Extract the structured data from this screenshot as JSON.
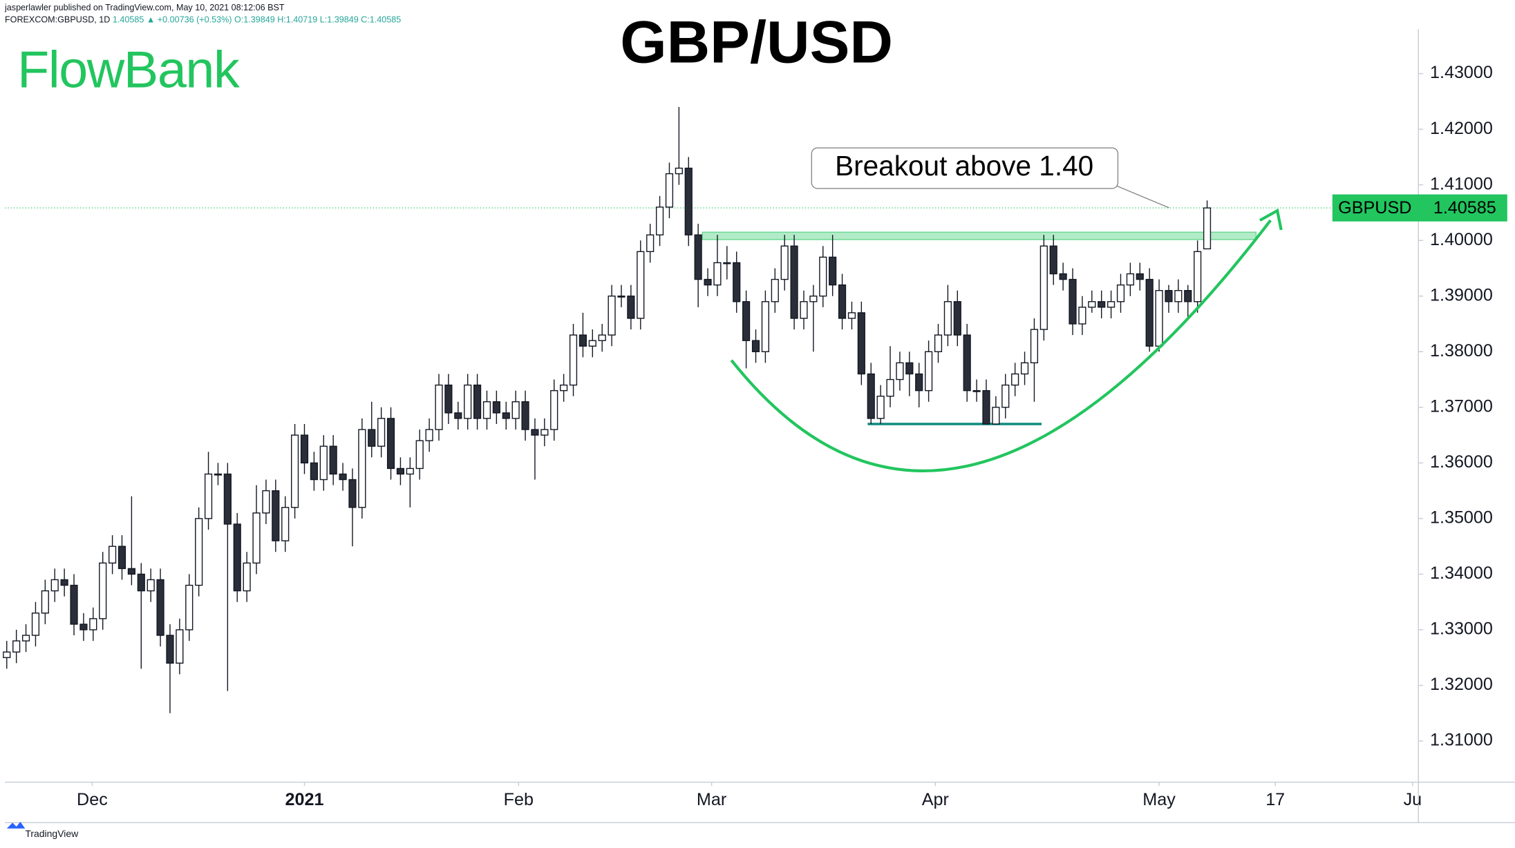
{
  "header": {
    "line1": "jasperlawler published on TradingView.com, May 10, 2021 08:12:06 BST",
    "symbol": "FOREXCOM:GBPUSD, 1D",
    "last": "1.40585",
    "change": "▲ +0.00736 (+0.53%)",
    "ohlc": "O:1.39849 H:1.40719 L:1.39849 C:1.40585"
  },
  "logo": "FlowBank",
  "footer": "TradingView",
  "chart_data": {
    "type": "candlestick",
    "title": "GBP/USD",
    "series": [
      {
        "name": "GBPUSD",
        "up_color": "#ffffff",
        "down_color": "#2a2e39",
        "edge_color": "#131722",
        "ohlc": [
          [
            1.325,
            1.328,
            1.323,
            1.326
          ],
          [
            1.326,
            1.33,
            1.324,
            1.328
          ],
          [
            1.328,
            1.331,
            1.326,
            1.329
          ],
          [
            1.329,
            1.335,
            1.327,
            1.333
          ],
          [
            1.333,
            1.339,
            1.331,
            1.337
          ],
          [
            1.337,
            1.341,
            1.335,
            1.339
          ],
          [
            1.339,
            1.341,
            1.336,
            1.338
          ],
          [
            1.338,
            1.34,
            1.329,
            1.331
          ],
          [
            1.331,
            1.333,
            1.328,
            1.33
          ],
          [
            1.33,
            1.334,
            1.328,
            1.332
          ],
          [
            1.332,
            1.344,
            1.33,
            1.342
          ],
          [
            1.342,
            1.347,
            1.34,
            1.345
          ],
          [
            1.345,
            1.347,
            1.339,
            1.341
          ],
          [
            1.341,
            1.354,
            1.338,
            1.34
          ],
          [
            1.34,
            1.342,
            1.323,
            1.337
          ],
          [
            1.337,
            1.341,
            1.335,
            1.339
          ],
          [
            1.339,
            1.341,
            1.327,
            1.329
          ],
          [
            1.329,
            1.331,
            1.315,
            1.324
          ],
          [
            1.324,
            1.332,
            1.322,
            1.33
          ],
          [
            1.33,
            1.34,
            1.328,
            1.338
          ],
          [
            1.338,
            1.352,
            1.336,
            1.35
          ],
          [
            1.35,
            1.362,
            1.348,
            1.358
          ],
          [
            1.358,
            1.36,
            1.356,
            1.358
          ],
          [
            1.358,
            1.36,
            1.319,
            1.349
          ],
          [
            1.349,
            1.351,
            1.335,
            1.337
          ],
          [
            1.337,
            1.344,
            1.335,
            1.342
          ],
          [
            1.342,
            1.356,
            1.34,
            1.351
          ],
          [
            1.351,
            1.357,
            1.349,
            1.355
          ],
          [
            1.355,
            1.357,
            1.344,
            1.346
          ],
          [
            1.346,
            1.354,
            1.344,
            1.352
          ],
          [
            1.352,
            1.367,
            1.35,
            1.365
          ],
          [
            1.365,
            1.367,
            1.358,
            1.36
          ],
          [
            1.36,
            1.362,
            1.355,
            1.357
          ],
          [
            1.357,
            1.365,
            1.355,
            1.363
          ],
          [
            1.363,
            1.365,
            1.356,
            1.358
          ],
          [
            1.358,
            1.36,
            1.355,
            1.357
          ],
          [
            1.357,
            1.359,
            1.345,
            1.352
          ],
          [
            1.352,
            1.368,
            1.35,
            1.366
          ],
          [
            1.366,
            1.371,
            1.361,
            1.363
          ],
          [
            1.363,
            1.37,
            1.361,
            1.368
          ],
          [
            1.368,
            1.37,
            1.357,
            1.359
          ],
          [
            1.359,
            1.361,
            1.356,
            1.358
          ],
          [
            1.358,
            1.361,
            1.352,
            1.359
          ],
          [
            1.359,
            1.366,
            1.357,
            1.364
          ],
          [
            1.364,
            1.368,
            1.362,
            1.366
          ],
          [
            1.366,
            1.376,
            1.364,
            1.374
          ],
          [
            1.374,
            1.376,
            1.367,
            1.369
          ],
          [
            1.369,
            1.371,
            1.366,
            1.368
          ],
          [
            1.368,
            1.376,
            1.366,
            1.374
          ],
          [
            1.374,
            1.376,
            1.366,
            1.368
          ],
          [
            1.368,
            1.373,
            1.366,
            1.371
          ],
          [
            1.371,
            1.373,
            1.367,
            1.369
          ],
          [
            1.369,
            1.371,
            1.366,
            1.368
          ],
          [
            1.368,
            1.373,
            1.366,
            1.371
          ],
          [
            1.371,
            1.373,
            1.364,
            1.366
          ],
          [
            1.366,
            1.368,
            1.357,
            1.365
          ],
          [
            1.365,
            1.368,
            1.363,
            1.366
          ],
          [
            1.366,
            1.375,
            1.364,
            1.373
          ],
          [
            1.373,
            1.376,
            1.371,
            1.374
          ],
          [
            1.374,
            1.385,
            1.372,
            1.383
          ],
          [
            1.383,
            1.387,
            1.379,
            1.381
          ],
          [
            1.381,
            1.384,
            1.379,
            1.382
          ],
          [
            1.382,
            1.385,
            1.38,
            1.383
          ],
          [
            1.383,
            1.392,
            1.381,
            1.39
          ],
          [
            1.39,
            1.392,
            1.388,
            1.39
          ],
          [
            1.39,
            1.392,
            1.384,
            1.386
          ],
          [
            1.386,
            1.4,
            1.384,
            1.398
          ],
          [
            1.398,
            1.403,
            1.396,
            1.401
          ],
          [
            1.401,
            1.408,
            1.399,
            1.406
          ],
          [
            1.406,
            1.414,
            1.404,
            1.412
          ],
          [
            1.412,
            1.424,
            1.41,
            1.413
          ],
          [
            1.413,
            1.415,
            1.399,
            1.401
          ],
          [
            1.401,
            1.403,
            1.388,
            1.393
          ],
          [
            1.393,
            1.395,
            1.39,
            1.392
          ],
          [
            1.392,
            1.401,
            1.39,
            1.396
          ],
          [
            1.396,
            1.399,
            1.393,
            1.396
          ],
          [
            1.396,
            1.398,
            1.387,
            1.389
          ],
          [
            1.389,
            1.391,
            1.377,
            1.382
          ],
          [
            1.382,
            1.384,
            1.378,
            1.38
          ],
          [
            1.38,
            1.391,
            1.378,
            1.389
          ],
          [
            1.389,
            1.395,
            1.387,
            1.393
          ],
          [
            1.393,
            1.401,
            1.391,
            1.399
          ],
          [
            1.399,
            1.401,
            1.384,
            1.386
          ],
          [
            1.386,
            1.391,
            1.384,
            1.389
          ],
          [
            1.389,
            1.392,
            1.38,
            1.39
          ],
          [
            1.39,
            1.399,
            1.388,
            1.397
          ],
          [
            1.397,
            1.401,
            1.39,
            1.392
          ],
          [
            1.392,
            1.394,
            1.384,
            1.386
          ],
          [
            1.386,
            1.389,
            1.384,
            1.387
          ],
          [
            1.387,
            1.389,
            1.374,
            1.376
          ],
          [
            1.376,
            1.378,
            1.367,
            1.368
          ],
          [
            1.368,
            1.374,
            1.367,
            1.372
          ],
          [
            1.372,
            1.381,
            1.37,
            1.375
          ],
          [
            1.375,
            1.38,
            1.373,
            1.378
          ],
          [
            1.378,
            1.38,
            1.372,
            1.376
          ],
          [
            1.376,
            1.378,
            1.37,
            1.373
          ],
          [
            1.373,
            1.382,
            1.371,
            1.38
          ],
          [
            1.38,
            1.385,
            1.378,
            1.383
          ],
          [
            1.383,
            1.392,
            1.381,
            1.389
          ],
          [
            1.389,
            1.391,
            1.381,
            1.383
          ],
          [
            1.383,
            1.385,
            1.371,
            1.373
          ],
          [
            1.373,
            1.375,
            1.371,
            1.373
          ],
          [
            1.373,
            1.375,
            1.367,
            1.367
          ],
          [
            1.367,
            1.372,
            1.367,
            1.37
          ],
          [
            1.37,
            1.376,
            1.368,
            1.374
          ],
          [
            1.374,
            1.378,
            1.372,
            1.376
          ],
          [
            1.376,
            1.38,
            1.374,
            1.378
          ],
          [
            1.378,
            1.386,
            1.371,
            1.384
          ],
          [
            1.384,
            1.401,
            1.382,
            1.399
          ],
          [
            1.399,
            1.401,
            1.392,
            1.394
          ],
          [
            1.394,
            1.396,
            1.391,
            1.393
          ],
          [
            1.393,
            1.395,
            1.383,
            1.385
          ],
          [
            1.385,
            1.39,
            1.383,
            1.388
          ],
          [
            1.388,
            1.391,
            1.387,
            1.389
          ],
          [
            1.389,
            1.391,
            1.386,
            1.388
          ],
          [
            1.388,
            1.391,
            1.386,
            1.389
          ],
          [
            1.389,
            1.394,
            1.387,
            1.392
          ],
          [
            1.392,
            1.396,
            1.39,
            1.394
          ],
          [
            1.394,
            1.396,
            1.391,
            1.393
          ],
          [
            1.393,
            1.395,
            1.38,
            1.381
          ],
          [
            1.381,
            1.393,
            1.38,
            1.391
          ],
          [
            1.391,
            1.392,
            1.387,
            1.389
          ],
          [
            1.389,
            1.393,
            1.387,
            1.391
          ],
          [
            1.391,
            1.392,
            1.386,
            1.389
          ],
          [
            1.389,
            1.4,
            1.387,
            1.398
          ],
          [
            1.39849,
            1.40719,
            1.39849,
            1.40585
          ]
        ]
      }
    ],
    "ylim": [
      1.3026,
      1.4432
    ],
    "yticks": [
      {
        "value": 1.31,
        "label": "1.31000"
      },
      {
        "value": 1.32,
        "label": "1.32000"
      },
      {
        "value": 1.33,
        "label": "1.33000"
      },
      {
        "value": 1.34,
        "label": "1.34000"
      },
      {
        "value": 1.35,
        "label": "1.35000"
      },
      {
        "value": 1.36,
        "label": "1.36000"
      },
      {
        "value": 1.37,
        "label": "1.37000"
      },
      {
        "value": 1.38,
        "label": "1.38000"
      },
      {
        "value": 1.39,
        "label": "1.39000"
      },
      {
        "value": 1.4,
        "label": "1.40000"
      },
      {
        "value": 1.41,
        "label": "1.41000"
      },
      {
        "value": 1.42,
        "label": "1.42000"
      },
      {
        "value": 1.43,
        "label": "1.43000"
      }
    ],
    "xlim": [
      -0.2,
      147
    ],
    "xticks": [
      {
        "value": 8.9,
        "label": "Dec"
      },
      {
        "value": 31,
        "label": "2021"
      },
      {
        "value": 53.3,
        "label": "Feb"
      },
      {
        "value": 73.4,
        "label": "Mar"
      },
      {
        "value": 96.7,
        "label": "Apr"
      },
      {
        "value": 120,
        "label": "May"
      },
      {
        "value": 132.1,
        "label": "17"
      },
      {
        "value": 146.4,
        "label": "Ju"
      }
    ],
    "annotation": "Breakout above 1.40",
    "last_price": 1.40585,
    "resistance_zone": [
      1.4005,
      1.4015
    ],
    "support_level": 1.367,
    "accent_color": "#22c55e"
  }
}
